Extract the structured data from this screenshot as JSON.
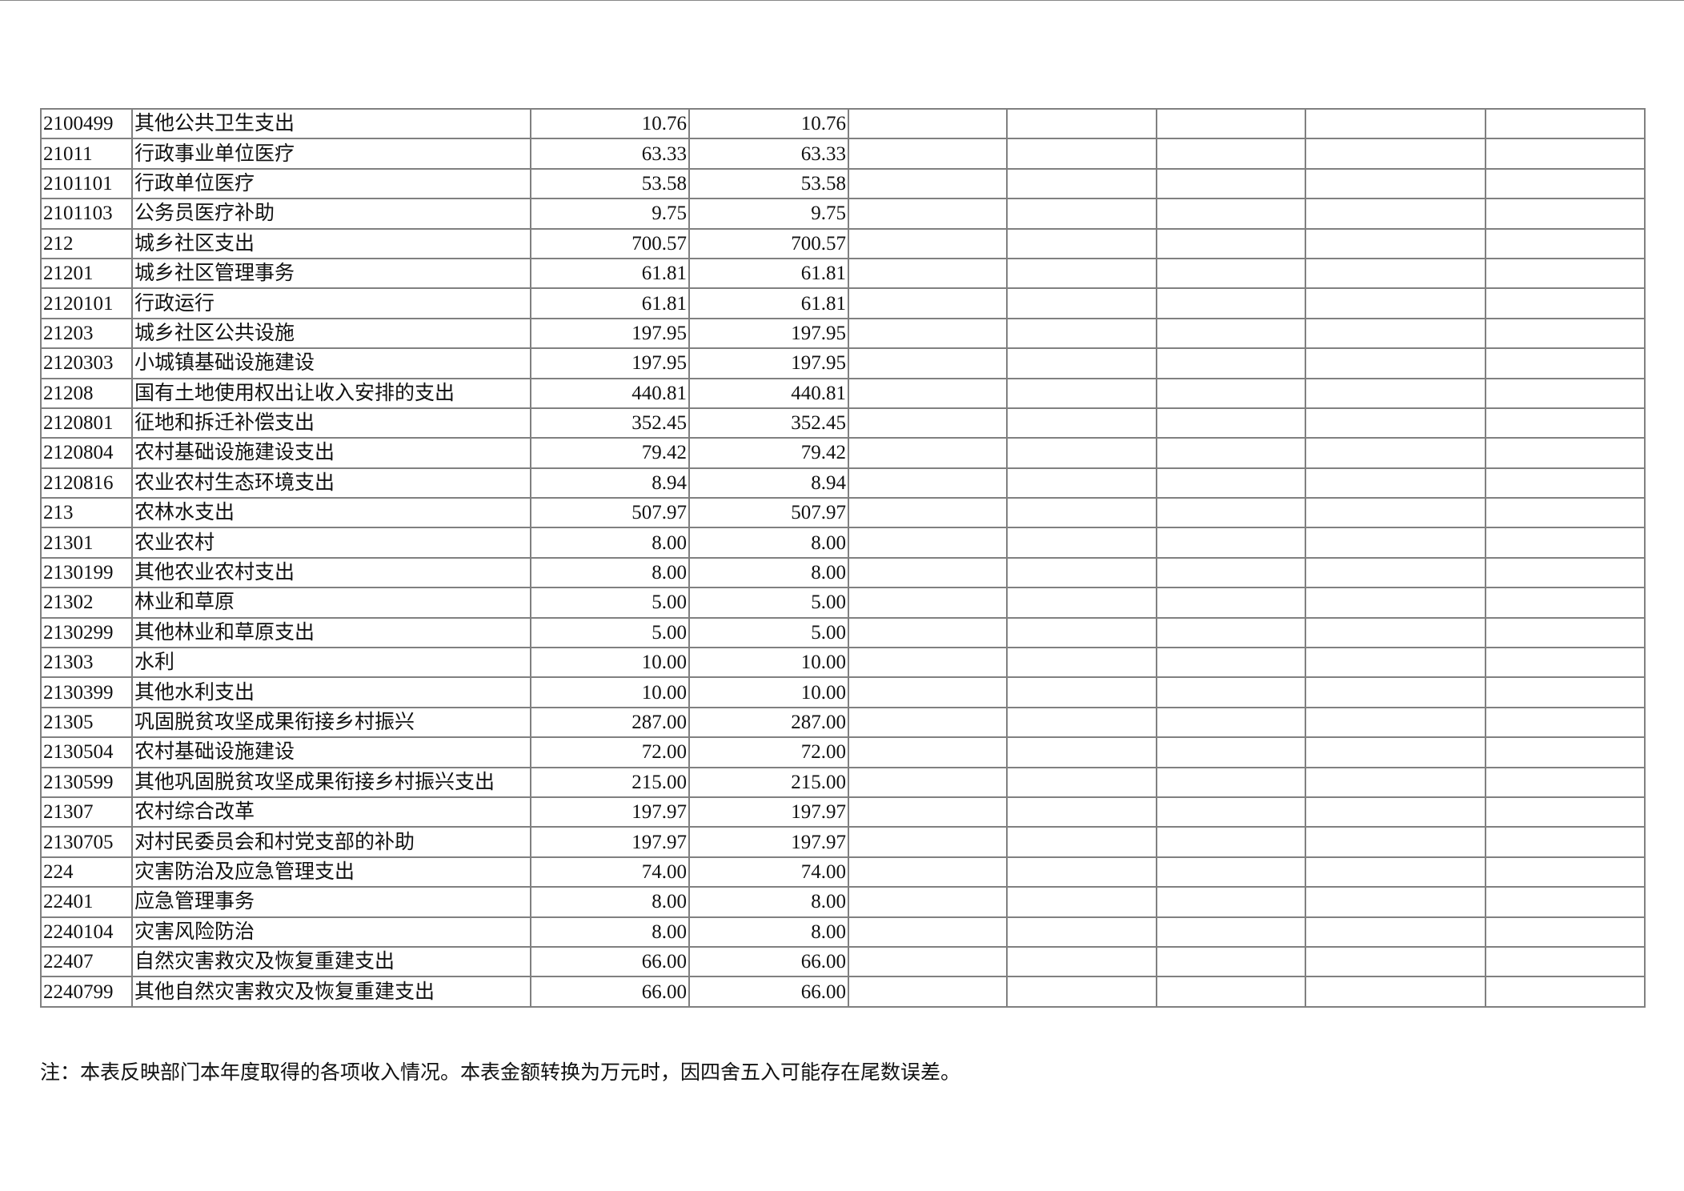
{
  "rows": [
    {
      "code": "2100499",
      "name": "其他公共卫生支出",
      "v1": "10.76",
      "v2": "10.76"
    },
    {
      "code": "21011",
      "name": "行政事业单位医疗",
      "v1": "63.33",
      "v2": "63.33"
    },
    {
      "code": "2101101",
      "name": "行政单位医疗",
      "v1": "53.58",
      "v2": "53.58"
    },
    {
      "code": "2101103",
      "name": "公务员医疗补助",
      "v1": "9.75",
      "v2": "9.75"
    },
    {
      "code": "212",
      "name": "城乡社区支出",
      "v1": "700.57",
      "v2": "700.57"
    },
    {
      "code": "21201",
      "name": "城乡社区管理事务",
      "v1": "61.81",
      "v2": "61.81"
    },
    {
      "code": "2120101",
      "name": "行政运行",
      "v1": "61.81",
      "v2": "61.81"
    },
    {
      "code": "21203",
      "name": "城乡社区公共设施",
      "v1": "197.95",
      "v2": "197.95"
    },
    {
      "code": "2120303",
      "name": "小城镇基础设施建设",
      "v1": "197.95",
      "v2": "197.95"
    },
    {
      "code": "21208",
      "name": "国有土地使用权出让收入安排的支出",
      "v1": "440.81",
      "v2": "440.81"
    },
    {
      "code": "2120801",
      "name": "征地和拆迁补偿支出",
      "v1": "352.45",
      "v2": "352.45"
    },
    {
      "code": "2120804",
      "name": "农村基础设施建设支出",
      "v1": "79.42",
      "v2": "79.42"
    },
    {
      "code": "2120816",
      "name": "农业农村生态环境支出",
      "v1": "8.94",
      "v2": "8.94"
    },
    {
      "code": "213",
      "name": "农林水支出",
      "v1": "507.97",
      "v2": "507.97"
    },
    {
      "code": "21301",
      "name": "农业农村",
      "v1": "8.00",
      "v2": "8.00"
    },
    {
      "code": "2130199",
      "name": "其他农业农村支出",
      "v1": "8.00",
      "v2": "8.00"
    },
    {
      "code": "21302",
      "name": "林业和草原",
      "v1": "5.00",
      "v2": "5.00"
    },
    {
      "code": "2130299",
      "name": "其他林业和草原支出",
      "v1": "5.00",
      "v2": "5.00"
    },
    {
      "code": "21303",
      "name": "水利",
      "v1": "10.00",
      "v2": "10.00"
    },
    {
      "code": "2130399",
      "name": "其他水利支出",
      "v1": "10.00",
      "v2": "10.00"
    },
    {
      "code": "21305",
      "name": "巩固脱贫攻坚成果衔接乡村振兴",
      "v1": "287.00",
      "v2": "287.00"
    },
    {
      "code": "2130504",
      "name": "农村基础设施建设",
      "v1": "72.00",
      "v2": "72.00"
    },
    {
      "code": "2130599",
      "name": "其他巩固脱贫攻坚成果衔接乡村振兴支出",
      "v1": "215.00",
      "v2": "215.00"
    },
    {
      "code": "21307",
      "name": "农村综合改革",
      "v1": "197.97",
      "v2": "197.97"
    },
    {
      "code": "2130705",
      "name": "对村民委员会和村党支部的补助",
      "v1": "197.97",
      "v2": "197.97"
    },
    {
      "code": "224",
      "name": "灾害防治及应急管理支出",
      "v1": "74.00",
      "v2": "74.00"
    },
    {
      "code": "22401",
      "name": "应急管理事务",
      "v1": "8.00",
      "v2": "8.00"
    },
    {
      "code": "2240104",
      "name": "灾害风险防治",
      "v1": "8.00",
      "v2": "8.00"
    },
    {
      "code": "22407",
      "name": "自然灾害救灾及恢复重建支出",
      "v1": "66.00",
      "v2": "66.00"
    },
    {
      "code": "2240799",
      "name": "其他自然灾害救灾及恢复重建支出",
      "v1": "66.00",
      "v2": "66.00"
    }
  ],
  "note": "注：本表反映部门本年度取得的各项收入情况。本表金额转换为万元时，因四舍五入可能存在尾数误差。"
}
